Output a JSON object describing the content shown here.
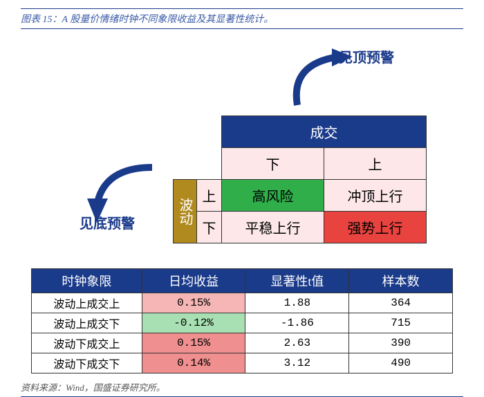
{
  "title": "图表 15：A 股量价情绪时钟不同象限收益及其显著性统计。",
  "diagram": {
    "top_label": "见顶预警",
    "left_label": "见底预警",
    "col_header": "成交",
    "row_header": "波动",
    "col_sub": [
      "下",
      "上"
    ],
    "row_sub": [
      "上",
      "下"
    ],
    "cells": {
      "r1c1": "高风险",
      "r1c2": "冲顶上行",
      "r2c1": "平稳上行",
      "r2c2": "强势上行"
    },
    "cell_bg": {
      "r1c1": "#2fae4a",
      "r1c2": "#fde7e9",
      "r2c1": "#fde7e9",
      "r2c2": "#e8433f"
    },
    "arrow_color": "#1a3a8a"
  },
  "stats": {
    "headers": [
      "时钟象限",
      "日均收益",
      "显著性t值",
      "样本数"
    ],
    "rows": [
      {
        "name": "波动上成交上",
        "ret": "0.15%",
        "ret_bg": "#f6b6b6",
        "t": "1.88",
        "n": "364"
      },
      {
        "name": "波动上成交下",
        "ret": "-0.12%",
        "ret_bg": "#a8e0b3",
        "t": "-1.86",
        "n": "715"
      },
      {
        "name": "波动下成交上",
        "ret": "0.15%",
        "ret_bg": "#f08f8f",
        "t": "2.63",
        "n": "390"
      },
      {
        "name": "波动下成交下",
        "ret": "0.14%",
        "ret_bg": "#f08f8f",
        "t": "3.12",
        "n": "490"
      }
    ]
  },
  "footer": "资料来源：Wind，国盛证券研究所。"
}
